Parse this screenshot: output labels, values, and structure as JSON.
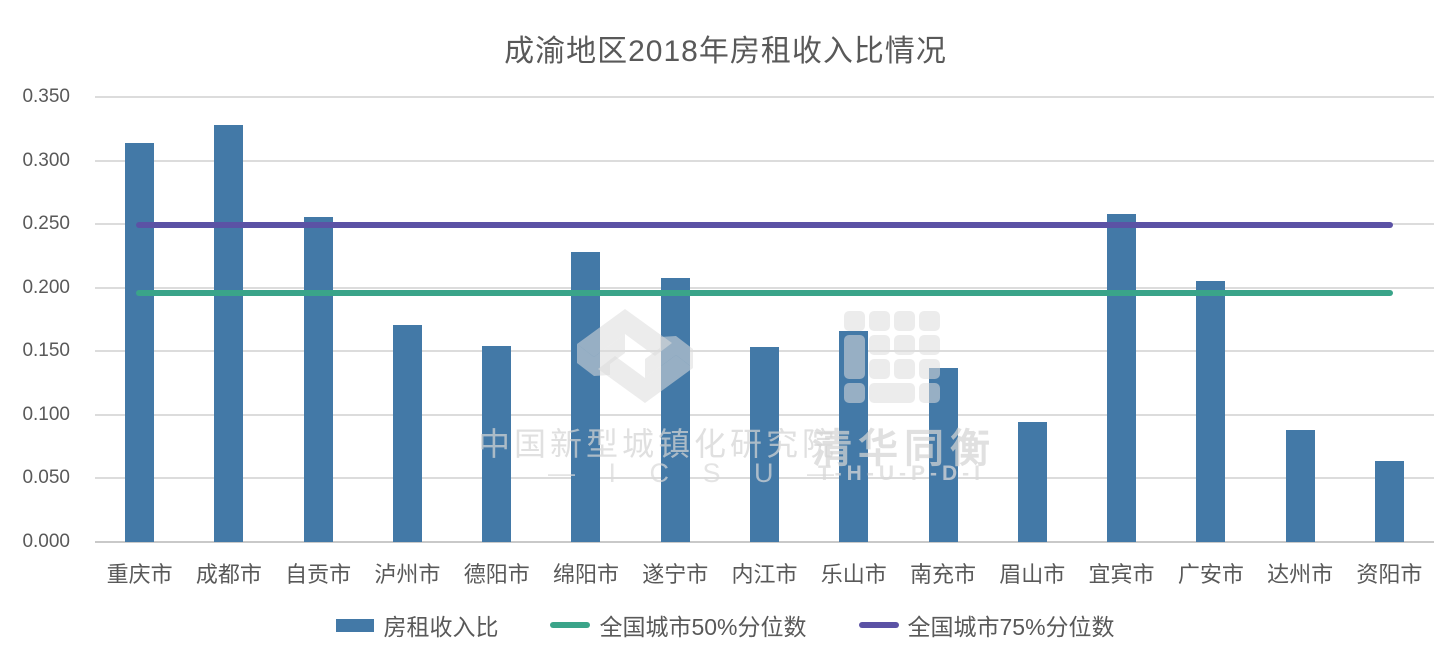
{
  "title": "成渝地区2018年房租收入比情况",
  "chart_data": {
    "type": "bar",
    "title": "成渝地区2018年房租收入比情况",
    "categories": [
      "重庆市",
      "成都市",
      "自贡市",
      "泸州市",
      "德阳市",
      "绵阳市",
      "遂宁市",
      "内江市",
      "乐山市",
      "南充市",
      "眉山市",
      "宜宾市",
      "广安市",
      "达州市",
      "资阳市"
    ],
    "series": [
      {
        "name": "房租收入比",
        "type": "bar",
        "color": "#4379A7",
        "values": [
          0.314,
          0.328,
          0.256,
          0.171,
          0.154,
          0.228,
          0.208,
          0.153,
          0.166,
          0.137,
          0.094,
          0.258,
          0.205,
          0.088,
          0.064
        ]
      },
      {
        "name": "全国城市50%分位数",
        "type": "reference-line",
        "color": "#3AA489",
        "value": 0.196
      },
      {
        "name": "全国城市75%分位数",
        "type": "reference-line",
        "color": "#5B52A5",
        "value": 0.249
      }
    ],
    "xlabel": "",
    "ylabel": "",
    "ylim": [
      0,
      0.35
    ],
    "ytick_step": 0.05,
    "ytick_labels": [
      "0.000",
      "0.050",
      "0.100",
      "0.150",
      "0.200",
      "0.250",
      "0.300",
      "0.350"
    ],
    "grid": "horizontal",
    "legend_position": "bottom"
  },
  "colors": {
    "bar": "#4379A7",
    "line_50pct": "#3AA489",
    "line_75pct": "#5B52A5",
    "axis_text": "#595959",
    "gridline": "#DCDCDC",
    "background": "#FFFFFF"
  },
  "watermarks": {
    "icsu_cn": "中国新型城镇化研究院",
    "icsu_latin": "— I C S U —",
    "thupdi_cn": "清华同衡",
    "thupdi_latin": "T-H-U-P-D-I"
  }
}
